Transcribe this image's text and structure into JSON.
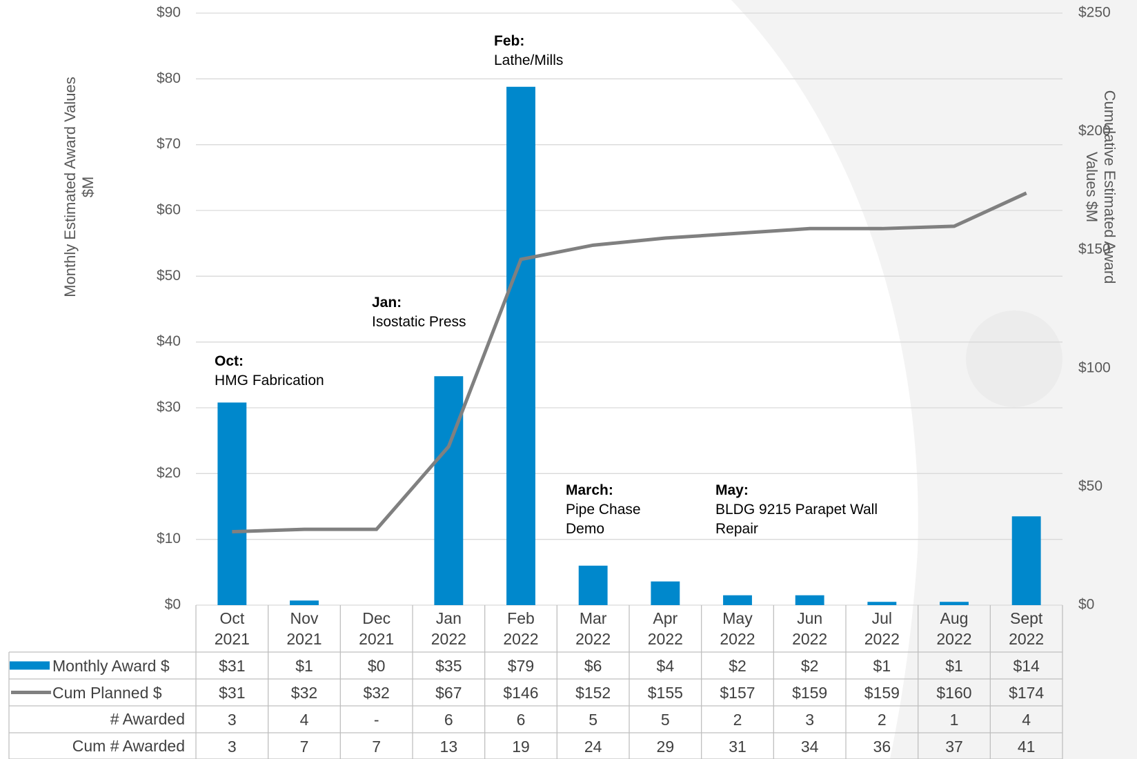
{
  "chart_data": {
    "type": "bar",
    "y_label": "Monthly Estimated Award Values $M",
    "y2_label": "Cumulative Estimated Award Values $M",
    "categories": [
      "Oct 2021",
      "Nov 2021",
      "Dec 2021",
      "Jan 2022",
      "Feb 2022",
      "Mar 2022",
      "Apr 2022",
      "May 2022",
      "Jun 2022",
      "Jul 2022",
      "Aug 2022",
      "Sept 2022"
    ],
    "ylim": [
      0,
      90
    ],
    "yticks": [
      {
        "value": 0,
        "label": "$0"
      },
      {
        "value": 10,
        "label": "$10"
      },
      {
        "value": 20,
        "label": "$20"
      },
      {
        "value": 30,
        "label": "$30"
      },
      {
        "value": 40,
        "label": "$40"
      },
      {
        "value": 50,
        "label": "$50"
      },
      {
        "value": 60,
        "label": "$60"
      },
      {
        "value": 70,
        "label": "$70"
      },
      {
        "value": 80,
        "label": "$80"
      },
      {
        "value": 90,
        "label": "$90"
      }
    ],
    "y2lim": [
      0,
      250
    ],
    "y2ticks": [
      {
        "value": 0,
        "label": "$0"
      },
      {
        "value": 50,
        "label": "$50"
      },
      {
        "value": 100,
        "label": "$100"
      },
      {
        "value": 150,
        "label": "$150"
      },
      {
        "value": 200,
        "label": "$200"
      },
      {
        "value": 250,
        "label": "$250"
      }
    ],
    "grid": true,
    "series": [
      {
        "name": "Monthly Award $",
        "type": "bar",
        "color": "#0088cc",
        "values": [
          30.8,
          0.7,
          0,
          34.8,
          78.8,
          6,
          3.6,
          1.5,
          1.5,
          0.5,
          0.5,
          13.5
        ],
        "value_labels": [
          "$31",
          "$1",
          "$0",
          "$35",
          "$79",
          "$6",
          "$4",
          "$2",
          "$2",
          "$1",
          "$1",
          "$14"
        ]
      },
      {
        "name": "Cum Planned $",
        "type": "line",
        "axis": "y2",
        "color": "#808080",
        "values": [
          31,
          32,
          32,
          67,
          146,
          152,
          155,
          157,
          159,
          159,
          160,
          174
        ],
        "value_labels": [
          "$31",
          "$32",
          "$32",
          "$67",
          "$146",
          "$152",
          "$155",
          "$157",
          "$159",
          "$159",
          "$160",
          "$174"
        ]
      }
    ],
    "table_rows": [
      {
        "name": "# Awarded",
        "values": [
          3,
          4,
          0,
          6,
          6,
          5,
          5,
          2,
          3,
          2,
          1,
          4
        ],
        "value_labels": [
          "3",
          "4",
          "-",
          "6",
          "6",
          "5",
          "5",
          "2",
          "3",
          "2",
          "1",
          "4"
        ]
      },
      {
        "name": "Cum # Awarded",
        "values": [
          3,
          7,
          7,
          13,
          19,
          24,
          29,
          31,
          34,
          36,
          37,
          41
        ]
      }
    ],
    "annotations": [
      {
        "label": "Oct:",
        "text": "HMG Fabrication"
      },
      {
        "label": "Jan:",
        "text": "Isostatic Press"
      },
      {
        "label": "Feb:",
        "text": "Lathe/Mills"
      },
      {
        "label": "March:",
        "text": "Pipe Chase Demo"
      },
      {
        "label": "May:",
        "text": "BLDG 9215 Parapet Wall Repair"
      }
    ]
  }
}
